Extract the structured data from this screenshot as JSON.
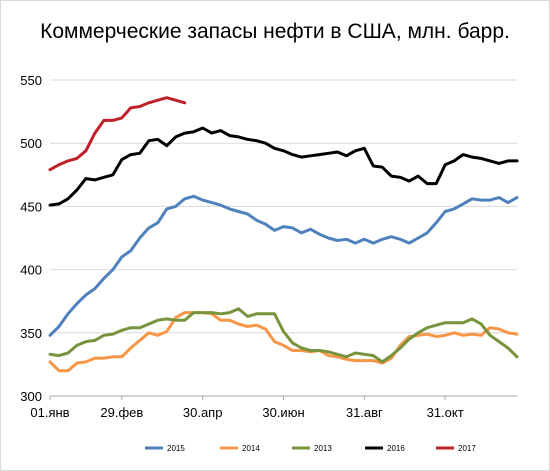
{
  "chart_data": {
    "type": "line",
    "title": "Коммерческие запасы нефти в США, млн. барр.",
    "xlabel": "",
    "ylabel": "",
    "ylim": [
      300,
      550
    ],
    "yticks": [
      300,
      350,
      400,
      450,
      500,
      550
    ],
    "xlim": [
      1,
      53
    ],
    "xtick_labels": [
      "01.янв",
      "29.фев",
      "30.апр",
      "30.июн",
      "31.авг",
      "31.окт"
    ],
    "xtick_weeks": [
      1,
      9,
      18,
      27,
      36,
      45
    ],
    "grid": "horizontal",
    "legend_position": "bottom",
    "colors": {
      "s2015": "#4f81bd",
      "s2014": "#f79646",
      "s2013": "#77933c",
      "s2016": "#000000",
      "s2017": "#c0202a",
      "grid": "#d9d9d9",
      "axis": "#a6a6a6"
    },
    "series": [
      {
        "name": "2015",
        "color": "#4f81bd",
        "values": [
          348,
          355,
          365,
          373,
          380,
          385,
          393,
          400,
          410,
          415,
          425,
          433,
          437,
          448,
          450,
          456,
          458,
          455,
          453,
          451,
          448,
          446,
          444,
          439,
          436,
          431,
          434,
          433,
          429,
          432,
          428,
          425,
          423,
          424,
          421,
          424,
          421,
          424,
          426,
          424,
          421,
          425,
          429,
          437,
          446,
          448,
          452,
          456,
          455,
          455,
          457,
          453,
          457
        ]
      },
      {
        "name": "2014",
        "color": "#f79646",
        "values": [
          327,
          320,
          320,
          326,
          327,
          330,
          330,
          331,
          331,
          338,
          344,
          350,
          348,
          351,
          362,
          366,
          366,
          366,
          365,
          360,
          360,
          357,
          355,
          356,
          353,
          343,
          340,
          336,
          336,
          335,
          336,
          332,
          331,
          329,
          328,
          328,
          328,
          326,
          330,
          340,
          347,
          348,
          349,
          347,
          348,
          350,
          348,
          349,
          348,
          354,
          353,
          350,
          349
        ]
      },
      {
        "name": "2013",
        "color": "#77933c",
        "values": [
          333,
          332,
          334,
          340,
          343,
          344,
          348,
          349,
          352,
          354,
          354,
          357,
          360,
          361,
          360,
          360,
          366,
          366,
          366,
          365,
          366,
          369,
          363,
          365,
          365,
          365,
          351,
          342,
          338,
          336,
          336,
          335,
          333,
          331,
          334,
          333,
          332,
          327,
          332,
          338,
          345,
          350,
          354,
          356,
          358,
          358,
          358,
          361,
          357,
          348,
          343,
          338,
          331
        ]
      },
      {
        "name": "2016",
        "color": "#000000",
        "values": [
          451,
          452,
          456,
          463,
          472,
          471,
          473,
          475,
          487,
          491,
          492,
          502,
          503,
          498,
          505,
          508,
          509,
          512,
          508,
          510,
          506,
          505,
          503,
          502,
          500,
          496,
          494,
          491,
          489,
          490,
          491,
          492,
          493,
          490,
          494,
          496,
          482,
          481,
          474,
          473,
          470,
          474,
          468,
          468,
          483,
          486,
          491,
          489,
          488,
          486,
          484,
          486,
          486
        ]
      },
      {
        "name": "2017",
        "color": "#c0202a",
        "values": [
          479,
          483,
          486,
          488,
          494,
          508,
          518,
          518,
          520,
          528,
          529,
          532,
          534,
          536,
          534,
          532
        ]
      }
    ]
  }
}
